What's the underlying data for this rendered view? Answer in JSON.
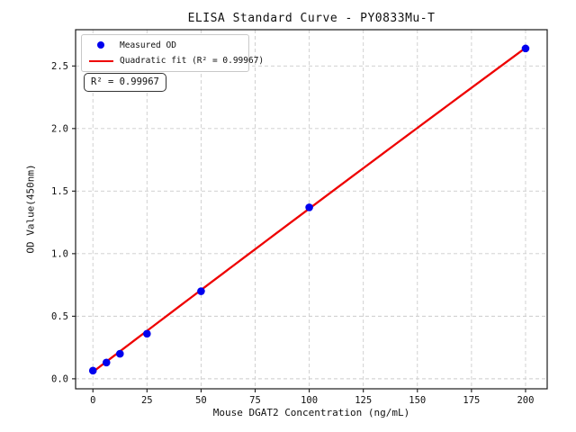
{
  "chart_data": {
    "type": "scatter",
    "title": "ELISA Standard Curve - PY0833Mu-T",
    "xlabel": "Mouse DGAT2 Concentration (ng/mL)",
    "ylabel": "OD Value(450nm)",
    "xlim": [
      -8,
      210
    ],
    "ylim": [
      -0.08,
      2.79
    ],
    "x_ticks": [
      0,
      25,
      50,
      75,
      100,
      125,
      150,
      175,
      200
    ],
    "x_tick_labels": [
      "0",
      "25",
      "50",
      "75",
      "100",
      "125",
      "150",
      "175",
      "200"
    ],
    "y_ticks": [
      0.0,
      0.5,
      1.0,
      1.5,
      2.0,
      2.5
    ],
    "y_tick_labels": [
      "0.0",
      "0.5",
      "1.0",
      "1.5",
      "2.0",
      "2.5"
    ],
    "grid": true,
    "grid_style": "dashed",
    "legend_position": "upper left",
    "series": [
      {
        "name": "Measured OD",
        "type": "scatter",
        "color": "#0000ee",
        "points": [
          [
            0,
            0.065
          ],
          [
            6.25,
            0.13
          ],
          [
            12.5,
            0.2
          ],
          [
            25,
            0.36
          ],
          [
            50,
            0.7
          ],
          [
            100,
            1.37
          ],
          [
            200,
            2.64
          ]
        ]
      },
      {
        "name": "Quadratic fit (R² = 0.99967)",
        "type": "line",
        "color": "#ee0000",
        "anchor_points": [
          [
            0,
            0.055
          ],
          [
            100,
            1.36
          ],
          [
            200,
            2.645
          ]
        ]
      }
    ],
    "annotation": "R² = 0.99967",
    "colors": {
      "marker": "#0000ee",
      "fit_line": "#ee0000",
      "grid": "#cccccc",
      "spine": "#1a1a1a",
      "text": "#111111",
      "background": "#ffffff"
    }
  }
}
